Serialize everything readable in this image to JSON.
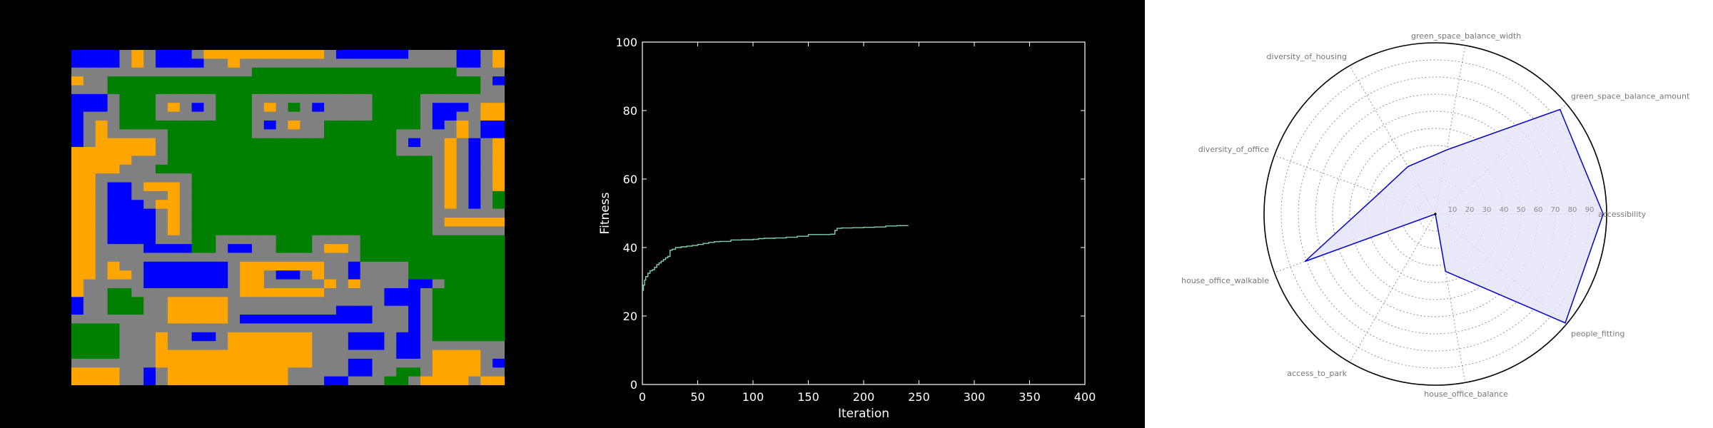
{
  "colors": {
    "blue": "#0000ff",
    "orange": "#ffa500",
    "green": "#008000",
    "grey": "#808080",
    "fitness_line": "#7fd1b0",
    "radar_line": "#0000cc",
    "radar_fill": "#e4e4f8"
  },
  "grid_map": {
    "legend": {
      "B": "blue",
      "O": "orange",
      "G": "green",
      "S": "grey"
    },
    "rows": [
      "BBBBSOSBBBSOOOOOOOOOOSBBBBBBSSSSBBSO",
      "BBBBSOSBBBBSSOSSSSSSSSSSSSSSSSSSBBSO",
      "SSSSSSSSSSSSSSSGGGGGGGGGGGGGGGGGSSSS",
      "OSSGGGGGGGGGGGGGGGGGGGGGGGGGGGGGGGSB",
      "SSSGGGGGGGGGGGGGGGGGGGGGGGGGGGGGGGSS",
      "BBBSGGGSSSSSGGGSSSSSSSSSSGGGGSSSSSSS",
      "BBBSGGGSOSBSGGGSOSGSBSSSSGGGGSBBBSOO",
      "BSSSGGGSSSSSGGGSSSSSSSSSSGGGGSBBSSOO",
      "BSOSGGGGGGGGGGGSBSOSSGGGGGGGGSBSOSBB",
      "BSOSSSSSGGGGGGGSSSSSSGGGGGGSSSSSOSBB",
      "BSOOOOOSGGGGGGGGGGGGGGGGGGGSBSSOSBSO",
      "OOOOOOOSGGGGGGGGGGGGGGGGGGGSSSSOSBSO",
      "OOOOOSSSGGGGGGGGGGGGGGGGGGGGGGSOSBSO",
      "OOOOSSSGGGGGGGGGGGGGGGGGGGGGGGSOSBSO",
      "OOSSSSSSSSGGGGGGGGGGGGGGGGGGGGSOSBSO",
      "OOSBBSOOOSGGGGGGGGGGGGGGGGGGGGSOSBSO",
      "OOSBBSSSOSGGGGGGGGGGGGGGGGGGGGSOSBSG",
      "OOSBBBSOOSGGGGGGGGGGGGGGGGGGGGSOSBSG",
      "OOSBBBBSOSGGGGGGGGGGGGGGGGGGGGSSSSSS",
      "OOSBBBBSOSGGGGGGGGGGGGGGGGGGGGSOOOOO",
      "OOSBBBBSOSGGGGGGGGGGGGGGGGGGGGSSSSSS",
      "OOSBBBBSSSGGSSSSSGGGSSSSGGGGGGGGGGGG",
      "OOSSSSBBBBGGSBBSSGGGSOOSGGGGGGGGGGGG",
      "OOSSSSSSSSSSSSSSSSSSSSSSGGGGGGGGGGGG",
      "OOSOSSBBBBBBBSOOOOOOOSSBSSSSGGGGGGGG",
      "OOSOOSBBBBBBBSOOSBBSOSSBSSSSGGGGGGGG",
      "OSSSSSBBBBBBBSOOSSSSSOSOSSSSBBSGGGGG",
      "OSSGGSSSSSSSSSOOOOOOOSSSSSBBBSGGGGGG",
      "BSSGGGSSOOOOOSSSSSSSSSSSSSBBBSGGGGGG",
      "BSSGGGSSOOOOOSSSSSSSSSBBBSSSBSGGGGGG",
      "SSSSSSSSOOOOOSBBBBBBBBBBBSSSBSGGGGGG",
      "GGGGSSSSSSSSSSSSSSSSSSSSSSSSBSGGGGGG",
      "GGGGSSSOSSBBSOOOOOOOSSSBBBSBBSGGGGGG",
      "GGGGSSSOSSSSSOOOOOOOSSSBBBSBBSSSSSSS",
      "GGGGSSSOOOOOOOOOOOOOSSSSSSSBBSOOOOSS",
      "SSSSSSSOOOOOOOOOOOOOSSSBBSSSSSOOOOSB",
      "OOOOSSBSOOOOOOOOOOSSSSSBBSSGGSOOOOSS",
      "OOOOSSBSOOOOOOOOOOSSSBBSSSGGSOOOOSOO"
    ]
  },
  "chart_data": [
    {
      "type": "line",
      "title": "",
      "xlabel": "Iteration",
      "ylabel": "Fitness",
      "xlim": [
        0,
        400
      ],
      "ylim": [
        0,
        100
      ],
      "xticks": [
        "0",
        "50",
        "100",
        "150",
        "200",
        "250",
        "300",
        "350",
        "400"
      ],
      "yticks": [
        "0",
        "20",
        "40",
        "60",
        "80",
        "100"
      ],
      "series": [
        {
          "x": [
            0,
            1,
            2,
            3,
            5,
            7,
            9,
            11,
            13,
            15,
            17,
            19,
            21,
            23,
            25,
            27,
            30,
            35,
            40,
            45,
            50,
            55,
            60,
            65,
            70,
            75,
            80,
            90,
            100,
            105,
            110,
            120,
            130,
            140,
            150,
            160,
            170,
            174,
            176,
            180,
            190,
            200,
            210,
            220,
            230,
            240
          ],
          "y": [
            27.5,
            29,
            30.5,
            31.5,
            32.5,
            33.2,
            33.5,
            34.2,
            35,
            35.5,
            36,
            36.5,
            37,
            37.4,
            39.2,
            39.5,
            40,
            40.2,
            40.4,
            40.6,
            40.9,
            41.2,
            41.5,
            41.7,
            41.8,
            41.8,
            42.2,
            42.3,
            42.4,
            42.6,
            42.7,
            42.8,
            43,
            43.3,
            43.8,
            43.8,
            43.9,
            45,
            45.6,
            45.7,
            45.8,
            45.9,
            46,
            46.3,
            46.4,
            46.5
          ]
        }
      ]
    },
    {
      "type": "radar",
      "title": "",
      "rlim": [
        0,
        100
      ],
      "rticks": [
        "10",
        "20",
        "30",
        "40",
        "50",
        "60",
        "70",
        "80",
        "90"
      ],
      "categories": [
        "accessibility",
        "green_space_balance_amount",
        "green_space_balance_width",
        "diversity_of_housing",
        "diversity_of_office",
        "house_office_walkable",
        "access_to_park",
        "house_office_balance",
        "people_fitting"
      ],
      "values": [
        98,
        95,
        38,
        32,
        35,
        81,
        0,
        34,
        99
      ]
    }
  ]
}
